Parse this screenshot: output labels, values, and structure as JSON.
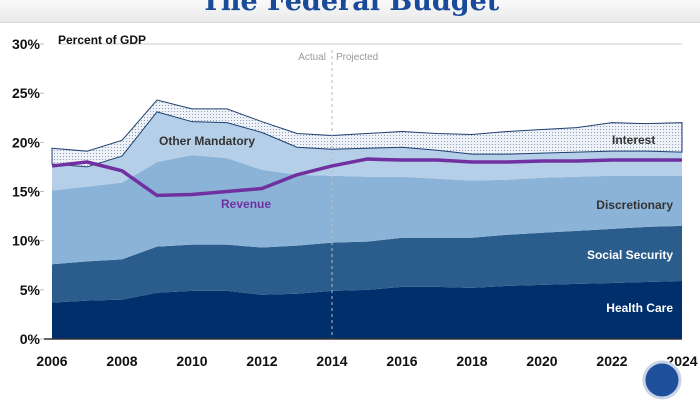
{
  "slide": {
    "title": "The Federal Budget"
  },
  "chart_data": {
    "type": "area",
    "subtitle": "Percent of GDP",
    "stacked": true,
    "x": [
      2006,
      2007,
      2008,
      2009,
      2010,
      2011,
      2012,
      2013,
      2014,
      2015,
      2016,
      2017,
      2018,
      2019,
      2020,
      2021,
      2022,
      2023,
      2024
    ],
    "xticks": [
      "2006",
      "2008",
      "2010",
      "2012",
      "2014",
      "2016",
      "2018",
      "2020",
      "2022",
      "2024"
    ],
    "yticks": [
      "0%",
      "5%",
      "10%",
      "15%",
      "20%",
      "25%",
      "30%"
    ],
    "ylim": [
      0,
      30
    ],
    "divider": {
      "x": 2014,
      "left_label": "Actual",
      "right_label": "Projected"
    },
    "series": [
      {
        "name": "Health Care",
        "color": "#002f6c",
        "values": [
          3.7,
          3.9,
          4.0,
          4.7,
          4.9,
          4.9,
          4.5,
          4.6,
          4.9,
          5.0,
          5.3,
          5.3,
          5.2,
          5.4,
          5.5,
          5.6,
          5.7,
          5.8,
          5.9
        ]
      },
      {
        "name": "Social Security",
        "color": "#2b5d8c",
        "values": [
          3.9,
          4.0,
          4.1,
          4.7,
          4.7,
          4.7,
          4.8,
          4.9,
          4.9,
          4.9,
          5.0,
          5.0,
          5.1,
          5.2,
          5.3,
          5.4,
          5.5,
          5.6,
          5.6
        ]
      },
      {
        "name": "Discretionary",
        "color": "#8bb3d8",
        "values": [
          7.5,
          7.6,
          7.8,
          8.6,
          9.1,
          8.8,
          7.9,
          7.2,
          6.8,
          6.6,
          6.2,
          6.0,
          5.8,
          5.6,
          5.6,
          5.5,
          5.4,
          5.2,
          5.1
        ]
      },
      {
        "name": "Other Mandatory",
        "color": "#b5cfe8",
        "values": [
          2.7,
          2.0,
          2.7,
          5.1,
          3.4,
          3.6,
          3.8,
          2.8,
          2.7,
          2.9,
          3.0,
          2.9,
          2.7,
          2.6,
          2.5,
          2.5,
          2.5,
          2.5,
          2.4
        ]
      },
      {
        "name": "Interest",
        "color": "#dfe8f2",
        "values": [
          1.6,
          1.6,
          1.6,
          1.2,
          1.3,
          1.4,
          1.1,
          1.4,
          1.4,
          1.5,
          1.6,
          1.7,
          2.0,
          2.3,
          2.4,
          2.5,
          2.9,
          2.8,
          3.0
        ]
      }
    ],
    "line": {
      "name": "Revenue",
      "color": "#7030a0",
      "values": [
        17.6,
        18.0,
        17.1,
        14.6,
        14.7,
        15.0,
        15.3,
        16.7,
        17.6,
        18.3,
        18.2,
        18.2,
        18.0,
        18.0,
        18.1,
        18.1,
        18.2,
        18.2,
        18.2
      ]
    }
  }
}
